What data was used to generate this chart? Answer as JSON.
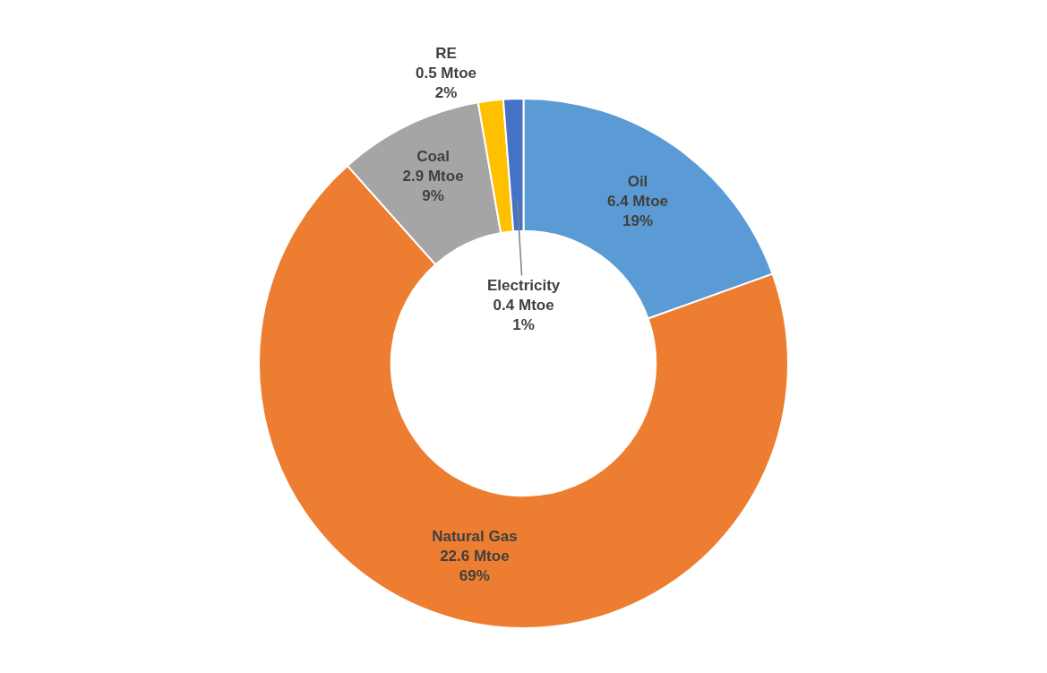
{
  "chart_data": {
    "type": "donut",
    "categories": [
      "Oil",
      "Natural Gas",
      "Coal",
      "RE",
      "Electricity"
    ],
    "values": [
      6.4,
      22.6,
      2.9,
      0.5,
      0.4
    ],
    "value_labels": [
      "6.4 Mtoe\n19%",
      "22.6 Mtoe\n69%",
      "2.9 Mtoe\n9%",
      "0.5 Mtoe\n2%",
      "0.4 Mtoe\n1%"
    ],
    "colors": [
      "#5b9bd5",
      "#ed7d31",
      "#a5a5a5",
      "#ffc000",
      "#4472c4"
    ],
    "legend": false
  }
}
